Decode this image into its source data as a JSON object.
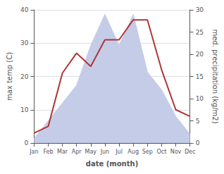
{
  "chart_data": {
    "type": "line",
    "xlabel": "date (month)",
    "ylabel": "max temp (C)",
    "y2label": "med. precipitation (kg/m2)",
    "categories": [
      "Jan",
      "Feb",
      "Mar",
      "Apr",
      "May",
      "Jun",
      "Jul",
      "Aug",
      "Sep",
      "Oct",
      "Nov",
      "Dec"
    ],
    "series": [
      {
        "type": "area",
        "axis": "y2",
        "color": "#c5cce8",
        "values": [
          1,
          5,
          9,
          13,
          22,
          29,
          22,
          29,
          16,
          12,
          6,
          2
        ]
      },
      {
        "type": "line",
        "color": "#b03535",
        "values": [
          3,
          5,
          21,
          27,
          23,
          31,
          31,
          37,
          37,
          22,
          10,
          8
        ]
      }
    ],
    "ylim": [
      0,
      40
    ],
    "yticks": [
      0,
      10,
      20,
      30,
      40
    ],
    "y2lim": [
      0,
      30
    ],
    "y2ticks": [
      0,
      5,
      10,
      15,
      20,
      25,
      30
    ],
    "grid": true
  }
}
